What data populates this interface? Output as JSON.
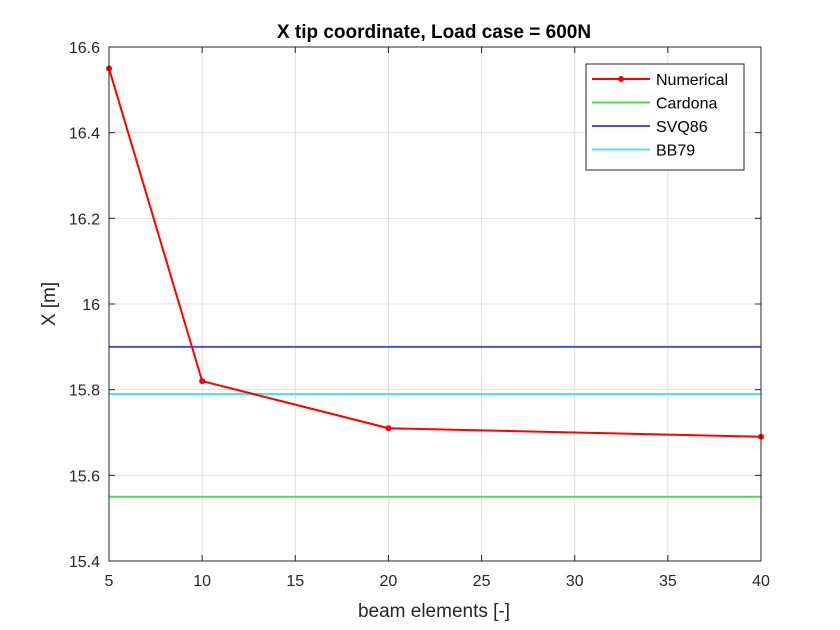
{
  "chart_data": {
    "type": "line",
    "title": "X tip coordinate, Load case = 600N",
    "xlabel": "beam elements [-]",
    "ylabel": "X [m]",
    "xlim": [
      5,
      40
    ],
    "ylim": [
      15.4,
      16.6
    ],
    "xticks": [
      "5",
      "10",
      "15",
      "20",
      "25",
      "30",
      "35",
      "40"
    ],
    "yticks": [
      "15.4",
      "15.6",
      "15.8",
      "16",
      "16.2",
      "16.4",
      "16.6"
    ],
    "grid": true,
    "legend_position": "top-right",
    "series": [
      {
        "name": "Numerical",
        "color": "#ff0000",
        "markers": true,
        "x": [
          5,
          10,
          20,
          40
        ],
        "y": [
          16.55,
          15.82,
          15.71,
          15.69
        ]
      },
      {
        "name": "Cardona",
        "color": "#4ddb4d",
        "markers": false,
        "x": [
          5,
          40
        ],
        "y": [
          15.55,
          15.55
        ]
      },
      {
        "name": "SVQ86",
        "color": "#4d4de6",
        "markers": false,
        "x": [
          5,
          40
        ],
        "y": [
          15.9,
          15.9
        ]
      },
      {
        "name": "BB79",
        "color": "#4de6e6",
        "markers": false,
        "x": [
          5,
          40
        ],
        "y": [
          15.79,
          15.79
        ]
      }
    ]
  }
}
